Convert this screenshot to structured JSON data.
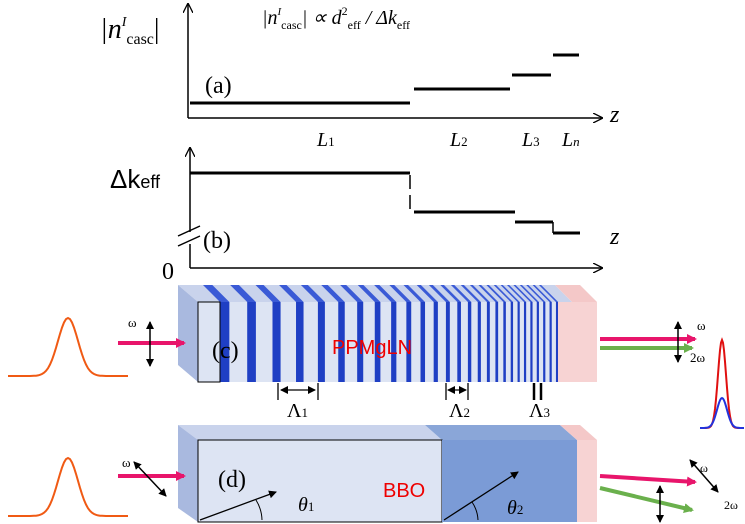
{
  "panel_a": {
    "tag": "(a)",
    "y_label": [
      "|n",
      "I",
      "casc",
      "|"
    ],
    "formula": [
      "|n",
      "I",
      "casc",
      "| ∝ d",
      "2",
      "eff",
      " / Δk",
      "eff"
    ],
    "x_label": "z",
    "lengths": [
      [
        "L",
        "1"
      ],
      [
        "L",
        "2"
      ],
      [
        "L",
        "3"
      ],
      [
        "L",
        "n"
      ]
    ]
  },
  "panel_b": {
    "tag": "(b)",
    "y_label": [
      "Δk",
      "eff"
    ],
    "x_label": "z",
    "origin": "0"
  },
  "panel_c": {
    "tag": "(c)",
    "crystal": "PPMgLN",
    "input": "ω",
    "output": [
      "ω",
      "2ω"
    ],
    "periods": [
      [
        "Λ",
        "1"
      ],
      [
        "Λ",
        "2"
      ],
      [
        "Λ",
        "3"
      ]
    ]
  },
  "panel_d": {
    "tag": "(d)",
    "crystal": "BBO",
    "input": "ω",
    "output": [
      "ω",
      "2ω"
    ],
    "angles": [
      [
        "θ",
        "1"
      ],
      [
        "θ",
        "2"
      ]
    ]
  }
}
